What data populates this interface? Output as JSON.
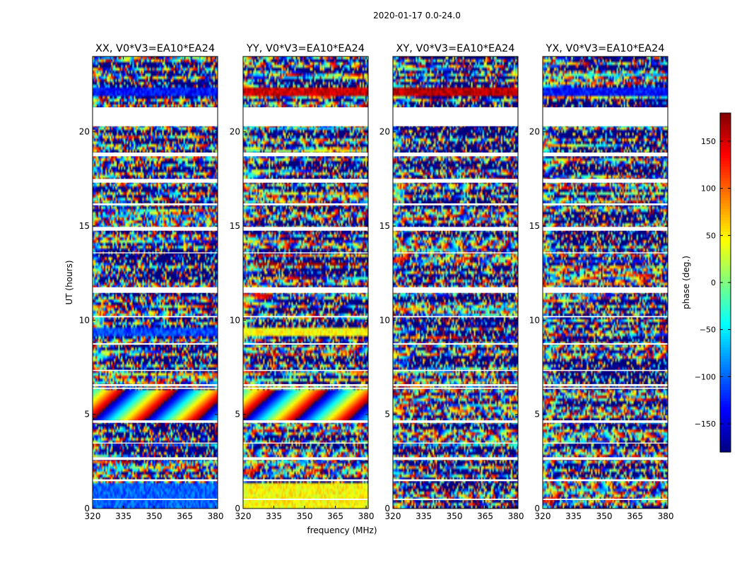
{
  "figure": {
    "suptitle": "2020-01-17 0.0-24.0",
    "xlabel": "frequency (MHz)",
    "ylabel": "UT (hours)"
  },
  "chart_data": {
    "type": "heatmap",
    "title": "2020-01-17 0.0-24.0",
    "xlabel": "frequency (MHz)",
    "ylabel": "UT (hours)",
    "xlim": [
      320,
      381
    ],
    "ylim": [
      0,
      24
    ],
    "xticks": [
      320,
      335,
      350,
      365,
      380
    ],
    "yticks": [
      0,
      5,
      10,
      15,
      20
    ],
    "colormap": "jet",
    "panels": [
      {
        "title": "XX, V0*V3=EA10*EA24",
        "pol": "XX"
      },
      {
        "title": "YY, V0*V3=EA10*EA24",
        "pol": "YY"
      },
      {
        "title": "XY, V0*V3=EA10*EA24",
        "pol": "XY"
      },
      {
        "title": "YX, V0*V3=EA10*EA24",
        "pol": "YX"
      }
    ],
    "colorbar": {
      "label": "phase (deg.)",
      "range": [
        -180,
        180
      ],
      "ticks": [
        150,
        100,
        50,
        0,
        -50,
        -100,
        -150
      ],
      "tick_labels": [
        "150",
        "100",
        "50",
        "0",
        "−50",
        "−100",
        "−150"
      ]
    },
    "gaps_ut_hours": [
      [
        20.3,
        21.3
      ],
      [
        18.7,
        18.9
      ],
      [
        17.3,
        17.5
      ],
      [
        16.1,
        16.2
      ],
      [
        14.75,
        14.95
      ],
      [
        13.55,
        13.6
      ],
      [
        11.45,
        11.75
      ],
      [
        10.15,
        10.22
      ],
      [
        8.7,
        8.78
      ],
      [
        7.3,
        7.36
      ],
      [
        6.6,
        6.5
      ],
      [
        6.35,
        6.42
      ],
      [
        4.55,
        4.68
      ],
      [
        3.45,
        3.5
      ],
      [
        2.58,
        2.72
      ],
      [
        1.45,
        1.55
      ],
      [
        0.45,
        0.52
      ]
    ],
    "features": {
      "XX": [
        {
          "ut": [
            4.7,
            6.3
          ],
          "type": "fringe"
        },
        {
          "ut": [
            9.2,
            9.6
          ],
          "level": -110
        },
        {
          "ut": [
            0.0,
            1.3
          ],
          "level": -100
        },
        {
          "ut": [
            21.9,
            22.3
          ],
          "level": -130
        }
      ],
      "YY": [
        {
          "ut": [
            4.7,
            6.3
          ],
          "type": "fringe"
        },
        {
          "ut": [
            9.2,
            9.6
          ],
          "level": 45
        },
        {
          "ut": [
            0.0,
            1.3
          ],
          "level": 45
        },
        {
          "ut": [
            21.9,
            22.3
          ],
          "level": 150
        }
      ],
      "XY": [
        {
          "ut": [
            21.9,
            22.3
          ],
          "level": 160
        }
      ],
      "YX": [
        {
          "ut": [
            21.9,
            22.3
          ],
          "level": -130
        }
      ]
    }
  }
}
